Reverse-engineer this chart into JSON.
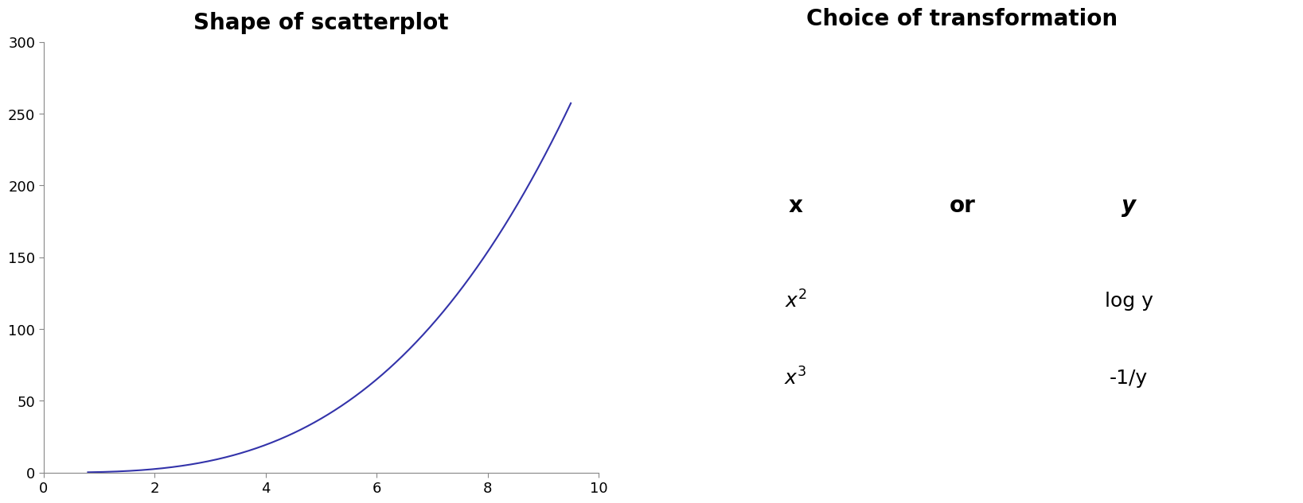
{
  "title_left": "Shape of scatterplot",
  "title_right": "Choice of transformation",
  "title_fontsize": 20,
  "title_fontweight": "bold",
  "curve_color": "#3333aa",
  "curve_linewidth": 1.5,
  "x_min": 0,
  "x_max": 10,
  "y_min": 0,
  "y_max": 300,
  "x_ticks": [
    0,
    2,
    4,
    6,
    8,
    10
  ],
  "y_ticks": [
    0,
    50,
    100,
    150,
    200,
    250,
    300
  ],
  "background_color": "#ffffff",
  "table_x_label": "x",
  "table_or_label": "or",
  "table_y_label": "y",
  "table_row1_x": "x²",
  "table_row1_y": "log y",
  "table_row2_x": "x³",
  "table_row2_y": "-1/y",
  "table_fontsize": 18,
  "table_header_fontsize": 20
}
